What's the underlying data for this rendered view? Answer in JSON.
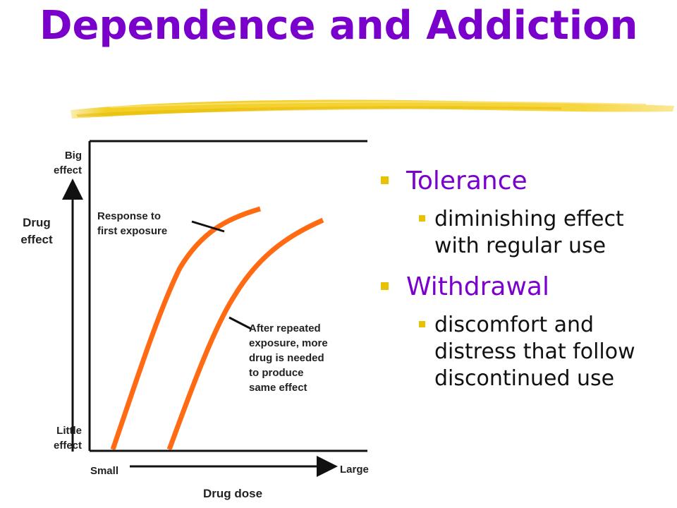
{
  "title": "Dependence and Addiction",
  "diagram": {
    "y_axis": {
      "top_label": "Big effect",
      "bottom_label": "Little effect",
      "title": "Drug effect"
    },
    "x_axis": {
      "left_label": "Small",
      "right_label": "Large",
      "title": "Drug dose"
    },
    "curves": [
      {
        "name": "first-exposure",
        "color": "#ff6a13"
      },
      {
        "name": "repeated-exposure",
        "color": "#ff6a13"
      }
    ],
    "annotations": {
      "first": "Response to\nfirst exposure",
      "repeated": "After repeated\nexposure, more\ndrug is needed\nto produce\nsame effect"
    }
  },
  "bullets": [
    {
      "label": "Tolerance",
      "sub": [
        "diminishing effect\nwith regular use"
      ]
    },
    {
      "label": "Withdrawal",
      "sub": [
        "discomfort and\ndistress that follow\ndiscontinued use"
      ]
    }
  ],
  "colors": {
    "title": "#7a00cc",
    "bullet_marker": "#e8c200",
    "brush_stroke": "#f2cc1a",
    "curve": "#ff6a13"
  },
  "icons": {
    "bullet_marker": "square-bullet-icon",
    "decoration": "brush-stroke-decoration"
  }
}
